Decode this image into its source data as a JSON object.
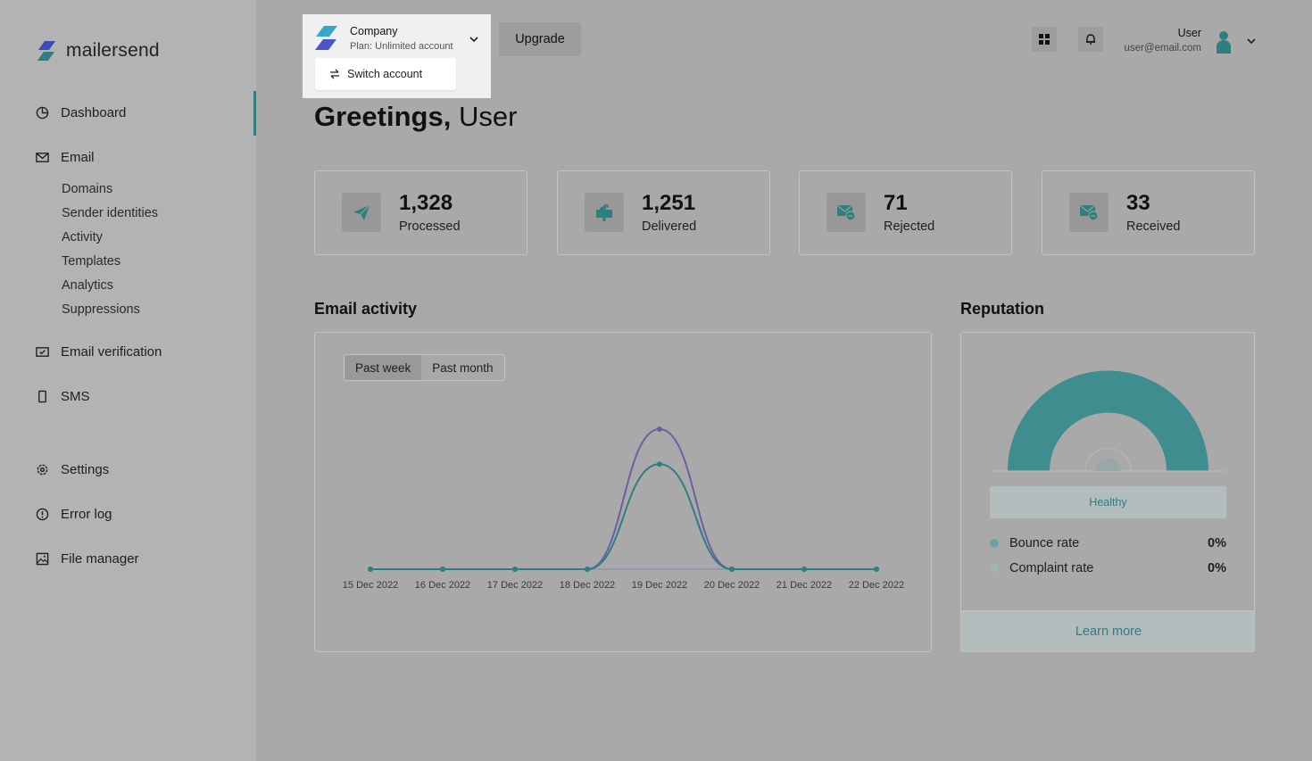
{
  "brand": {
    "name": "mailersend",
    "accent": "#2f7f80"
  },
  "sidebar": {
    "items": [
      {
        "label": "Dashboard",
        "icon": "pie-chart-icon"
      },
      {
        "label": "Email",
        "icon": "envelope-icon"
      },
      {
        "label": "Email verification",
        "icon": "envelope-check-icon"
      },
      {
        "label": "SMS",
        "icon": "phone-icon"
      },
      {
        "label": "Settings",
        "icon": "gear-icon"
      },
      {
        "label": "Error log",
        "icon": "alert-circle-icon"
      },
      {
        "label": "File manager",
        "icon": "image-icon"
      }
    ],
    "email_sub": [
      "Domains",
      "Sender identities",
      "Activity",
      "Templates",
      "Analytics",
      "Suppressions"
    ]
  },
  "header": {
    "account": {
      "name": "Company",
      "plan": "Plan: Unlimited account",
      "switch_label": "Switch account"
    },
    "upgrade_label": "Upgrade",
    "user": {
      "name": "User",
      "email": "user@email.com"
    }
  },
  "greeting": {
    "prefix": "Greetings,",
    "name": "User"
  },
  "stats": [
    {
      "value": "1,328",
      "label": "Processed",
      "icon": "paper-plane-icon"
    },
    {
      "value": "1,251",
      "label": "Delivered",
      "icon": "mailbox-icon"
    },
    {
      "value": "71",
      "label": "Rejected",
      "icon": "envelope-minus-icon"
    },
    {
      "value": "33",
      "label": "Received",
      "icon": "envelope-minus-icon"
    }
  ],
  "activity": {
    "title": "Email activity",
    "tabs": [
      "Past week",
      "Past month"
    ],
    "active_tab": "Past week"
  },
  "chart_data": {
    "type": "line",
    "categories": [
      "15 Dec 2022",
      "16 Dec 2022",
      "17 Dec 2022",
      "18 Dec 2022",
      "19 Dec 2022",
      "20 Dec 2022",
      "21 Dec 2022",
      "22 Dec 2022"
    ],
    "series": [
      {
        "values": [
          0,
          0,
          0,
          0,
          100,
          0,
          0,
          0
        ],
        "color": "#6b5fa6"
      },
      {
        "values": [
          0,
          0,
          0,
          0,
          75,
          0,
          0,
          0
        ],
        "color": "#2f7f80"
      }
    ],
    "ylim": [
      0,
      100
    ],
    "grid": false
  },
  "reputation": {
    "title": "Reputation",
    "status": "Healthy",
    "rates": [
      {
        "label": "Bounce rate",
        "value": "0%"
      },
      {
        "label": "Complaint rate",
        "value": "0%"
      }
    ],
    "learn_more": "Learn more"
  }
}
